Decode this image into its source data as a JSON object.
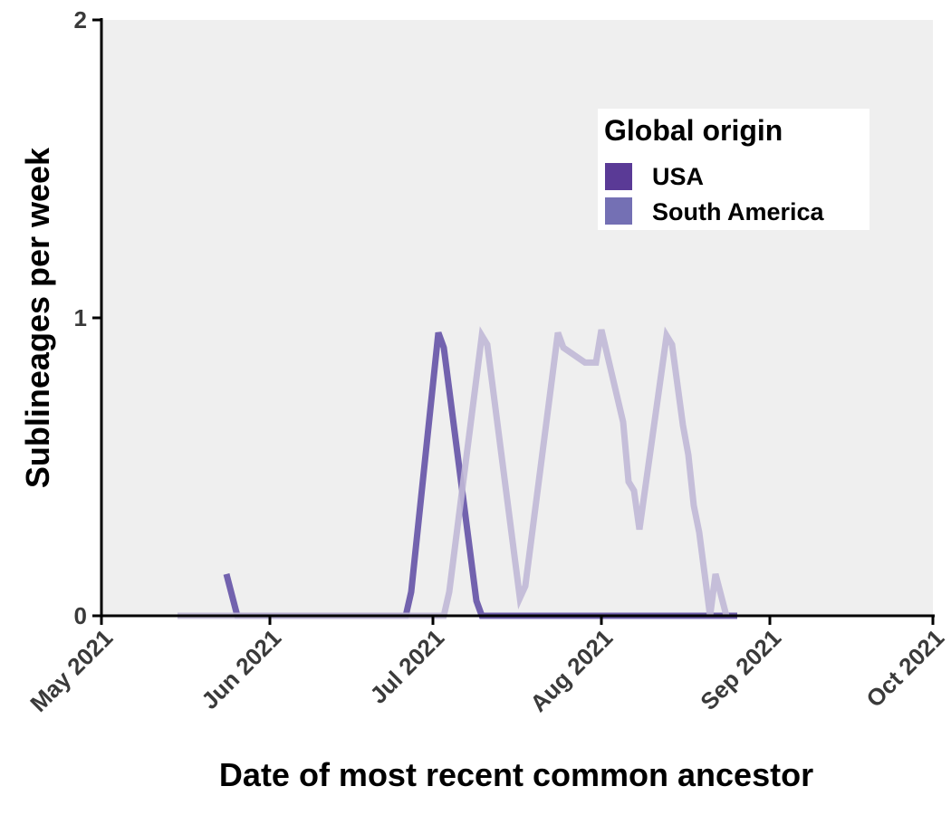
{
  "chart_data": {
    "type": "line",
    "title": "",
    "xlabel": "Date of most recent common ancestor",
    "ylabel": "Sublineages per week",
    "x_tick_labels": [
      "May 2021",
      "Jun 2021",
      "Jul 2021",
      "Aug 2021",
      "Sep 2021",
      "Oct 2021"
    ],
    "x_tick_dates": [
      "2021-05-01",
      "2021-06-01",
      "2021-07-01",
      "2021-08-01",
      "2021-09-01",
      "2021-10-01"
    ],
    "xlim": [
      "2021-05-01",
      "2021-10-01"
    ],
    "y_ticks": [
      0,
      1,
      2
    ],
    "y_tick_labels": [
      "0",
      "1",
      "2"
    ],
    "ylim": [
      0,
      2
    ],
    "grid": false,
    "background_color": "#efefef",
    "legend": {
      "title": "Global origin",
      "position": "top-right",
      "entries": [
        {
          "label": "USA",
          "color": "#5a3a96"
        },
        {
          "label": "South America",
          "color": "#7470b4"
        }
      ]
    },
    "series": [
      {
        "name": "USA",
        "color": "#6a5aaa",
        "opacity": 0.95,
        "points": [
          {
            "x": "2021-05-24",
            "y": 0.14
          },
          {
            "x": "2021-05-26",
            "y": 0
          },
          {
            "x": "2021-06-26",
            "y": 0
          },
          {
            "x": "2021-06-27",
            "y": 0.08
          },
          {
            "x": "2021-07-02",
            "y": 0.95
          },
          {
            "x": "2021-07-03",
            "y": 0.9
          },
          {
            "x": "2021-07-09",
            "y": 0.05
          },
          {
            "x": "2021-07-10",
            "y": 0
          },
          {
            "x": "2021-08-26",
            "y": 0
          }
        ]
      },
      {
        "name": "South America",
        "color": "#c0b8d6",
        "opacity": 0.9,
        "points": [
          {
            "x": "2021-05-15",
            "y": 0
          },
          {
            "x": "2021-07-03",
            "y": 0
          },
          {
            "x": "2021-07-04",
            "y": 0.08
          },
          {
            "x": "2021-07-10",
            "y": 0.94
          },
          {
            "x": "2021-07-11",
            "y": 0.91
          },
          {
            "x": "2021-07-17",
            "y": 0.06
          },
          {
            "x": "2021-07-18",
            "y": 0.1
          },
          {
            "x": "2021-07-24",
            "y": 0.95
          },
          {
            "x": "2021-07-25",
            "y": 0.9
          },
          {
            "x": "2021-07-29",
            "y": 0.85
          },
          {
            "x": "2021-07-31",
            "y": 0.85
          },
          {
            "x": "2021-08-01",
            "y": 0.96
          },
          {
            "x": "2021-08-05",
            "y": 0.65
          },
          {
            "x": "2021-08-06",
            "y": 0.45
          },
          {
            "x": "2021-08-07",
            "y": 0.42
          },
          {
            "x": "2021-08-08",
            "y": 0.29
          },
          {
            "x": "2021-08-09",
            "y": 0.42
          },
          {
            "x": "2021-08-13",
            "y": 0.94
          },
          {
            "x": "2021-08-14",
            "y": 0.91
          },
          {
            "x": "2021-08-16",
            "y": 0.64
          },
          {
            "x": "2021-08-17",
            "y": 0.54
          },
          {
            "x": "2021-08-18",
            "y": 0.37
          },
          {
            "x": "2021-08-19",
            "y": 0.28
          },
          {
            "x": "2021-08-21",
            "y": 0
          },
          {
            "x": "2021-08-22",
            "y": 0.14
          },
          {
            "x": "2021-08-24",
            "y": 0
          }
        ]
      }
    ]
  }
}
